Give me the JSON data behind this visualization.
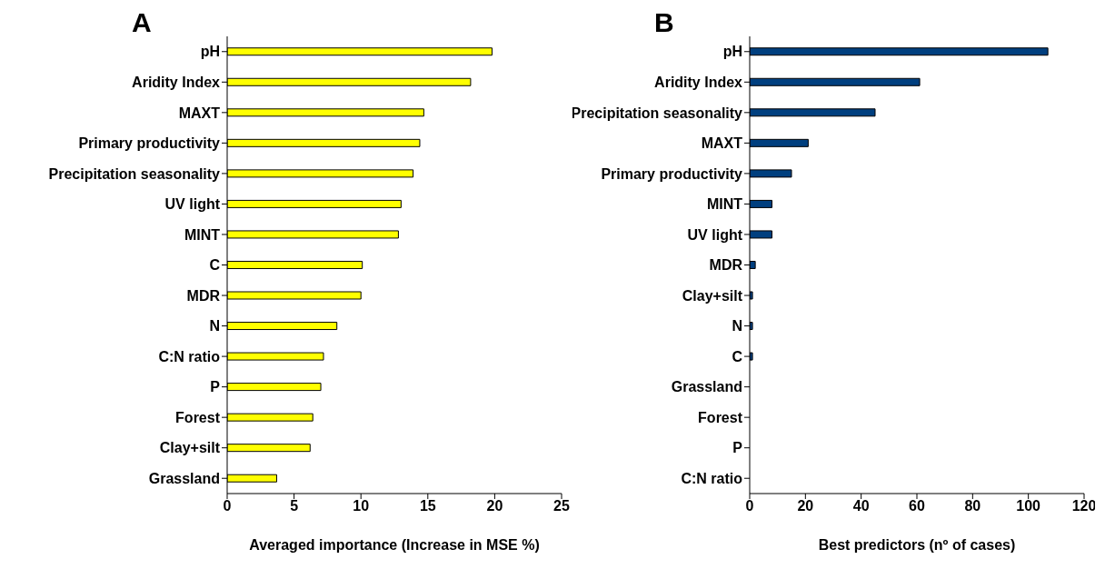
{
  "chart_data": [
    {
      "type": "bar",
      "orientation": "horizontal",
      "title": "A",
      "xlabel": "Averaged importance (Increase in MSE %)",
      "categories": [
        "pH",
        "Aridity Index",
        "MAXT",
        "Primary productivity",
        "Precipitation seasonality",
        "UV light",
        "MINT",
        "C",
        "MDR",
        "N",
        "C:N ratio",
        "P",
        "Forest",
        "Clay+silt",
        "Grassland"
      ],
      "values": [
        19.8,
        18.2,
        14.7,
        14.4,
        13.9,
        13.0,
        12.8,
        10.1,
        10.0,
        8.2,
        7.2,
        7.0,
        6.4,
        6.2,
        3.7
      ],
      "color": "#ffff00",
      "xlim": [
        0,
        25
      ],
      "xticks": [
        0,
        5,
        10,
        15,
        20,
        25
      ],
      "grid": false,
      "legend": false
    },
    {
      "type": "bar",
      "orientation": "horizontal",
      "title": "B",
      "xlabel": "Best predictors (nº of cases)",
      "categories": [
        "pH",
        "Aridity Index",
        "Precipitation seasonality",
        "MAXT",
        "Primary productivity",
        "MINT",
        "UV light",
        "MDR",
        "Clay+silt",
        "N",
        "C",
        "Grassland",
        "Forest",
        "P",
        "C:N ratio"
      ],
      "values": [
        107,
        61,
        45,
        21,
        15,
        8,
        8,
        2,
        1,
        1,
        1,
        0,
        0,
        0,
        0
      ],
      "color": "#003f7f",
      "xlim": [
        0,
        120
      ],
      "xticks": [
        0,
        20,
        40,
        60,
        80,
        100,
        120
      ],
      "grid": false,
      "legend": false
    }
  ]
}
